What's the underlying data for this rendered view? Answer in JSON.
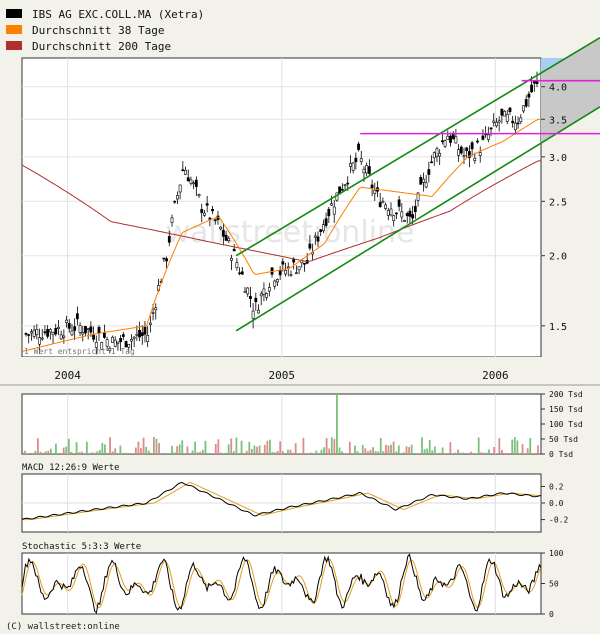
{
  "chart_data": [
    {
      "type": "candlestick",
      "y_scale": "log",
      "ylim": [
        1.32,
        4.5
      ],
      "y_ticks": [
        1.5,
        2.0,
        2.5,
        3.0,
        3.5,
        4.0
      ],
      "y_tick_labels": [
        "1.5",
        "2.0",
        "2.5",
        "3.0",
        "3.5",
        "4.0"
      ],
      "x_labels": [
        "2004",
        "2005",
        "2006"
      ],
      "legend": [
        {
          "label": "IBS AG EXC.COLL.MA (Xetra)",
          "color": "#000000"
        },
        {
          "label": "Durchschnitt 38 Tage",
          "color": "#ff7f00"
        },
        {
          "label": "Durchschnitt 200 Tage",
          "color": "#b03030"
        }
      ],
      "note": "1 Wert entspricht 1 Tag",
      "watermark": "wallstreet:online",
      "price_keypoints": [
        {
          "date": "2003-10",
          "value": 1.45
        },
        {
          "date": "2004-01",
          "value": 1.5
        },
        {
          "date": "2004-03",
          "value": 1.4
        },
        {
          "date": "2004-05",
          "value": 1.45
        },
        {
          "date": "2004-06",
          "value": 2.0
        },
        {
          "date": "2004-07",
          "value": 2.9
        },
        {
          "date": "2004-08",
          "value": 2.45
        },
        {
          "date": "2004-09",
          "value": 2.25
        },
        {
          "date": "2004-10",
          "value": 1.95
        },
        {
          "date": "2004-11",
          "value": 1.6
        },
        {
          "date": "2004-12",
          "value": 1.85
        },
        {
          "date": "2005-02",
          "value": 1.95
        },
        {
          "date": "2005-03",
          "value": 2.3
        },
        {
          "date": "2005-05",
          "value": 3.0
        },
        {
          "date": "2005-06",
          "value": 2.55
        },
        {
          "date": "2005-08",
          "value": 2.3
        },
        {
          "date": "2005-09",
          "value": 2.9
        },
        {
          "date": "2005-10",
          "value": 3.3
        },
        {
          "date": "2005-11",
          "value": 3.0
        },
        {
          "date": "2005-12",
          "value": 3.15
        },
        {
          "date": "2006-01",
          "value": 3.5
        },
        {
          "date": "2006-02",
          "value": 3.5
        },
        {
          "date": "2006-03",
          "value": 4.0
        }
      ],
      "ma38_keypoints": [
        {
          "date": "2003-10",
          "value": 1.35
        },
        {
          "date": "2004-02",
          "value": 1.45
        },
        {
          "date": "2004-05",
          "value": 1.5
        },
        {
          "date": "2004-07",
          "value": 2.2
        },
        {
          "date": "2004-09",
          "value": 2.35
        },
        {
          "date": "2004-11",
          "value": 1.85
        },
        {
          "date": "2005-01",
          "value": 1.9
        },
        {
          "date": "2005-03",
          "value": 2.1
        },
        {
          "date": "2005-05",
          "value": 2.65
        },
        {
          "date": "2005-07",
          "value": 2.6
        },
        {
          "date": "2005-09",
          "value": 2.55
        },
        {
          "date": "2005-11",
          "value": 3.0
        },
        {
          "date": "2006-01",
          "value": 3.2
        },
        {
          "date": "2006-03",
          "value": 3.5
        }
      ],
      "ma200_keypoints": [
        {
          "date": "2003-10",
          "value": 2.9
        },
        {
          "date": "2004-03",
          "value": 2.3
        },
        {
          "date": "2004-09",
          "value": 2.1
        },
        {
          "date": "2005-02",
          "value": 1.95
        },
        {
          "date": "2005-06",
          "value": 2.15
        },
        {
          "date": "2005-10",
          "value": 2.4
        },
        {
          "date": "2006-03",
          "value": 2.95
        }
      ],
      "trend_channel": {
        "upper": [
          {
            "date": "2004-10",
            "value": 2.0
          },
          {
            "date": "2006-03",
            "value": 4.2
          }
        ],
        "lower": [
          {
            "date": "2004-10",
            "value": 1.47
          },
          {
            "date": "2006-03",
            "value": 3.15
          }
        ]
      },
      "horizontal_lines": [
        {
          "value": 3.3,
          "color": "#e020e0"
        },
        {
          "value": 4.1,
          "color": "#e020e0"
        }
      ]
    },
    {
      "type": "bar",
      "panel": "volume",
      "unit": "Tsd",
      "ylim": [
        0,
        200
      ],
      "y_ticks": [
        0,
        50,
        100,
        150,
        200
      ],
      "y_tick_labels": [
        "0 Tsd",
        "50 Tsd",
        "100 Tsd",
        "150 Tsd",
        "200 Tsd"
      ],
      "max_value": 200,
      "max_date": "2005-06"
    },
    {
      "type": "line",
      "panel": "macd",
      "title": "MACD 12:26:9 Werte",
      "ylim": [
        -0.35,
        0.35
      ],
      "y_ticks": [
        0.2,
        0.0,
        -0.2
      ],
      "y_tick_labels": [
        "0.2",
        "0.0",
        "-0.2"
      ],
      "keypoints": [
        {
          "date": "2003-10",
          "value": -0.2
        },
        {
          "date": "2004-02",
          "value": -0.08
        },
        {
          "date": "2004-05",
          "value": 0.0
        },
        {
          "date": "2004-07",
          "value": 0.25
        },
        {
          "date": "2004-09",
          "value": 0.05
        },
        {
          "date": "2004-11",
          "value": -0.15
        },
        {
          "date": "2005-01",
          "value": -0.05
        },
        {
          "date": "2005-03",
          "value": 0.03
        },
        {
          "date": "2005-05",
          "value": 0.12
        },
        {
          "date": "2005-07",
          "value": -0.08
        },
        {
          "date": "2005-09",
          "value": 0.1
        },
        {
          "date": "2005-11",
          "value": 0.05
        },
        {
          "date": "2006-01",
          "value": 0.12
        },
        {
          "date": "2006-03",
          "value": 0.08
        }
      ]
    },
    {
      "type": "line",
      "panel": "stochastic",
      "title": "Stochastic 5:3:3 Werte",
      "ylim": [
        0,
        100
      ],
      "y_ticks": [
        0,
        50,
        100
      ],
      "y_tick_labels": [
        "0",
        "50",
        "100"
      ]
    }
  ],
  "footer": {
    "credit": "(C) wallstreet:online"
  }
}
